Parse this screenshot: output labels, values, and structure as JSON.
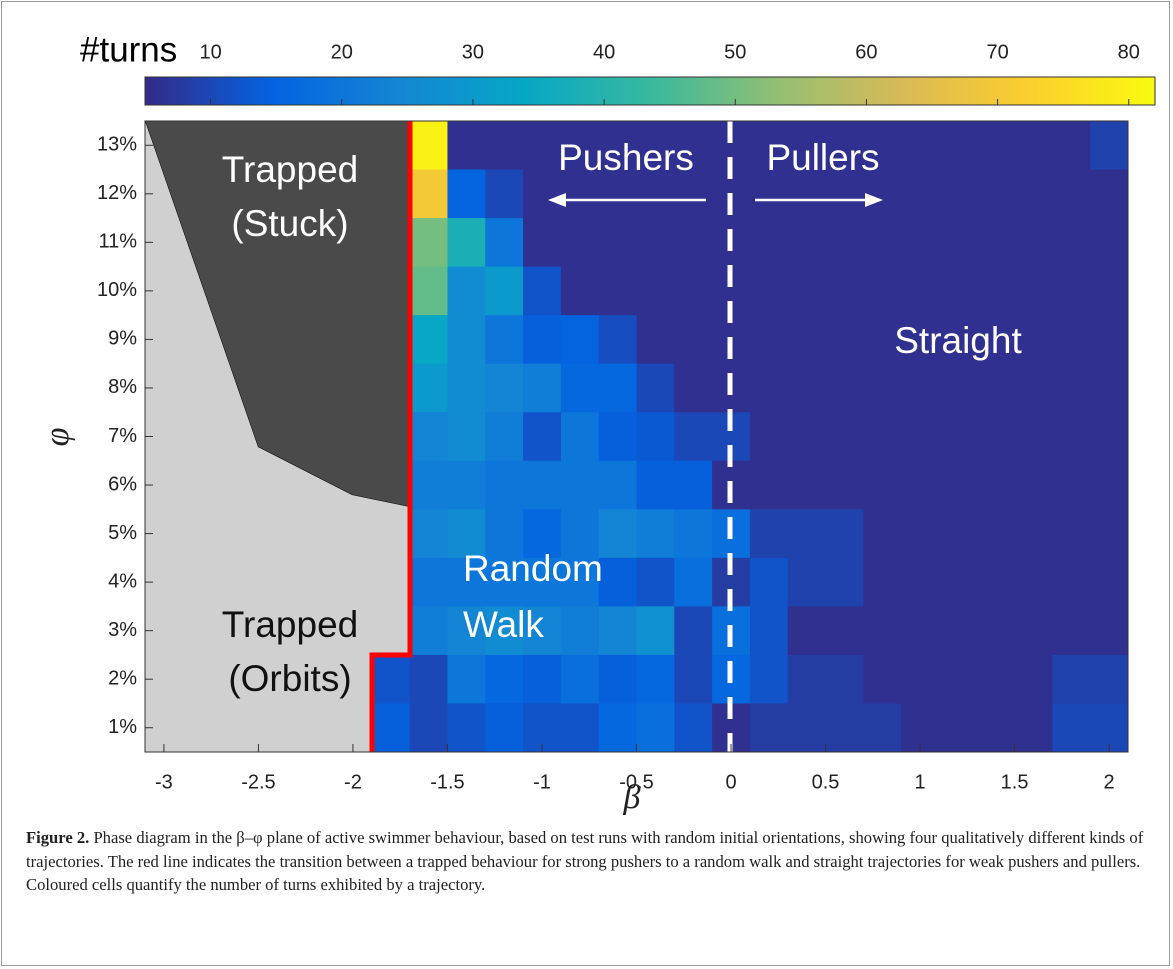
{
  "chart_data": {
    "type": "heatmap",
    "colorbar_label": "#turns",
    "clim": [
      5,
      82
    ],
    "cticks": [
      10,
      20,
      30,
      40,
      50,
      60,
      70,
      80
    ],
    "colormap": [
      "#352a87",
      "#0363e1",
      "#1485d4",
      "#06a7c6",
      "#38b99e",
      "#92bf73",
      "#d9ba56",
      "#fcce2e",
      "#f9fb0e"
    ],
    "xlabel": "β",
    "ylabel": "φ",
    "xlim": [
      -3.1,
      2.1
    ],
    "ylim": [
      0.5,
      13.5
    ],
    "xticks": [
      -3,
      -2.5,
      -2,
      -1.5,
      -1,
      -0.5,
      0,
      0.5,
      1,
      1.5,
      2
    ],
    "yticks": [
      {
        "value": 1,
        "label": "1%"
      },
      {
        "value": 2,
        "label": "2%"
      },
      {
        "value": 3,
        "label": "3%"
      },
      {
        "value": 4,
        "label": "4%"
      },
      {
        "value": 5,
        "label": "5%"
      },
      {
        "value": 6,
        "label": "6%"
      },
      {
        "value": 7,
        "label": "7%"
      },
      {
        "value": 8,
        "label": "8%"
      },
      {
        "value": 9,
        "label": "9%"
      },
      {
        "value": 10,
        "label": "10%"
      },
      {
        "value": 11,
        "label": "11%"
      },
      {
        "value": 12,
        "label": "12%"
      },
      {
        "value": 13,
        "label": "13%"
      }
    ],
    "x": [
      -1.8,
      -1.6,
      -1.4,
      -1.2,
      -1.0,
      -0.8,
      -0.6,
      -0.4,
      -0.2,
      0.0,
      0.2,
      0.4,
      0.6,
      0.8,
      1.0,
      1.2,
      1.4,
      1.6,
      1.8,
      2.0
    ],
    "y": [
      13,
      12,
      11,
      10,
      9,
      8,
      7,
      6,
      5,
      4,
      3,
      2,
      1
    ],
    "values": [
      [
        null,
        80,
        6,
        6,
        6,
        6,
        6,
        6,
        6,
        6,
        6,
        6,
        6,
        6,
        6,
        6,
        6,
        6,
        6,
        9
      ],
      [
        null,
        70,
        15,
        10,
        6,
        6,
        6,
        6,
        6,
        6,
        6,
        6,
        6,
        6,
        6,
        6,
        6,
        6,
        6,
        6
      ],
      [
        null,
        50,
        38,
        20,
        6,
        6,
        6,
        6,
        6,
        6,
        6,
        6,
        6,
        6,
        6,
        6,
        6,
        6,
        6,
        6
      ],
      [
        null,
        48,
        26,
        30,
        12,
        6,
        6,
        6,
        6,
        6,
        6,
        6,
        6,
        6,
        6,
        6,
        6,
        6,
        6,
        6
      ],
      [
        null,
        34,
        26,
        20,
        14,
        15,
        11,
        6,
        6,
        6,
        6,
        6,
        6,
        6,
        6,
        6,
        6,
        6,
        6,
        6
      ],
      [
        null,
        30,
        26,
        24,
        22,
        16,
        16,
        10,
        6,
        6,
        6,
        6,
        6,
        6,
        6,
        6,
        6,
        6,
        6,
        6
      ],
      [
        null,
        24,
        26,
        22,
        12,
        20,
        14,
        13,
        10,
        10,
        6,
        6,
        6,
        6,
        6,
        6,
        6,
        6,
        6,
        6
      ],
      [
        null,
        22,
        22,
        20,
        20,
        20,
        20,
        14,
        14,
        6,
        6,
        6,
        6,
        6,
        6,
        6,
        6,
        6,
        6,
        6
      ],
      [
        null,
        24,
        26,
        20,
        16,
        20,
        24,
        22,
        20,
        18,
        9,
        9,
        9,
        6,
        6,
        6,
        6,
        6,
        6,
        6
      ],
      [
        null,
        20,
        20,
        20,
        20,
        20,
        14,
        12,
        18,
        8,
        12,
        9,
        9,
        6,
        6,
        6,
        6,
        6,
        6,
        6
      ],
      [
        null,
        22,
        24,
        26,
        24,
        22,
        24,
        28,
        10,
        18,
        12,
        6,
        6,
        6,
        6,
        6,
        6,
        6,
        6,
        6
      ],
      [
        12,
        10,
        20,
        16,
        14,
        18,
        14,
        16,
        10,
        16,
        12,
        8,
        8,
        6,
        6,
        6,
        6,
        6,
        9,
        9
      ],
      [
        14,
        10,
        12,
        14,
        12,
        12,
        16,
        18,
        12,
        6,
        8,
        8,
        8,
        8,
        6,
        6,
        6,
        6,
        10,
        10
      ]
    ],
    "annotations": [
      "Trapped",
      "(Stuck)",
      "Pushers",
      "Pullers",
      "Straight",
      "Random",
      "Walk",
      "Trapped",
      "(Orbits)"
    ],
    "caption_label": "Figure 2.",
    "caption": "Phase diagram in the β–φ plane of active swimmer behaviour, based on test runs with random initial orientations, showing four qualitatively different kinds of trajectories. The red line indicates the transition between a trapped behaviour for strong pushers to a random walk and straight trajectories for weak pushers and pullers. Coloured cells quantify the number of turns exhibited by a trajectory."
  }
}
